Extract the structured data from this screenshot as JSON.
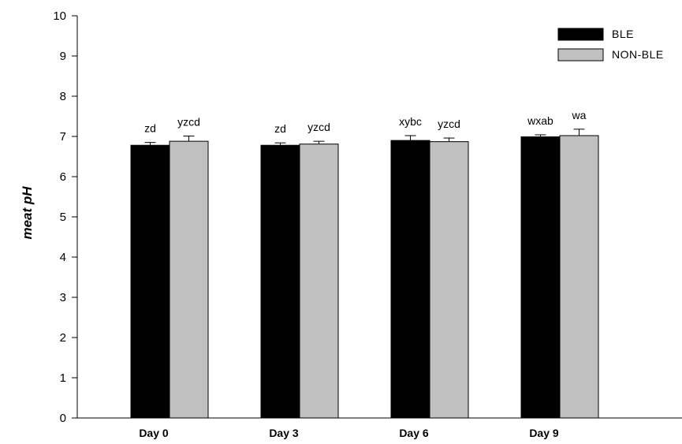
{
  "chart_data": {
    "type": "bar",
    "title": "",
    "xlabel": "",
    "ylabel": "meat pH",
    "ylim": [
      0,
      10
    ],
    "yticks": [
      0,
      1,
      2,
      3,
      4,
      5,
      6,
      7,
      8,
      9,
      10
    ],
    "categories": [
      "Day 0",
      "Day 3",
      "Day 6",
      "Day 9"
    ],
    "legend_position": "top-right",
    "series": [
      {
        "name": "BLE",
        "color": "#000000",
        "values": [
          6.78,
          6.78,
          6.9,
          6.99
        ],
        "errors": [
          0.07,
          0.06,
          0.12,
          0.05
        ],
        "labels": [
          "zd",
          "zd",
          "xybc",
          "wxab"
        ]
      },
      {
        "name": "NON-BLE",
        "color": "#c0c0c0",
        "values": [
          6.88,
          6.81,
          6.87,
          7.02
        ],
        "errors": [
          0.13,
          0.07,
          0.09,
          0.16
        ],
        "labels": [
          "yzcd",
          "yzcd",
          "yzcd",
          "wa"
        ]
      }
    ]
  }
}
